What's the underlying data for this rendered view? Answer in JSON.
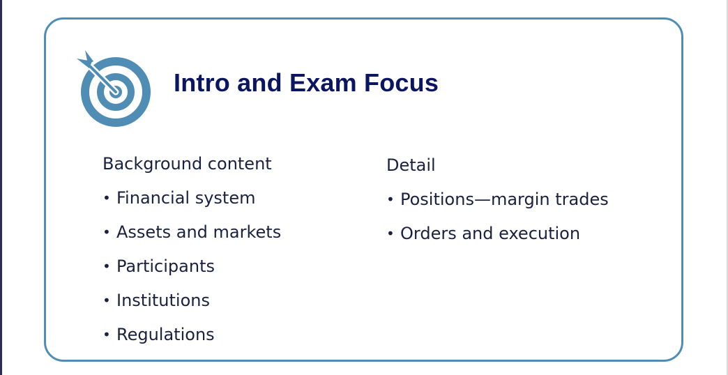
{
  "slide": {
    "title": "Intro and Exam Focus",
    "icon": "target-icon",
    "accent_color": "#4f8db5",
    "title_color": "#0b1560",
    "bullet_glyph": "•",
    "background_column": {
      "heading": "Background content",
      "items": [
        {
          "label": "Financial system"
        },
        {
          "label": "Assets and markets"
        },
        {
          "label": "Participants"
        },
        {
          "label": "Institutions"
        },
        {
          "label": "Regulations"
        }
      ]
    },
    "detail_column": {
      "heading": "Detail",
      "items": [
        {
          "label": "Positions—margin trades"
        },
        {
          "label": "Orders and execution"
        }
      ]
    }
  }
}
